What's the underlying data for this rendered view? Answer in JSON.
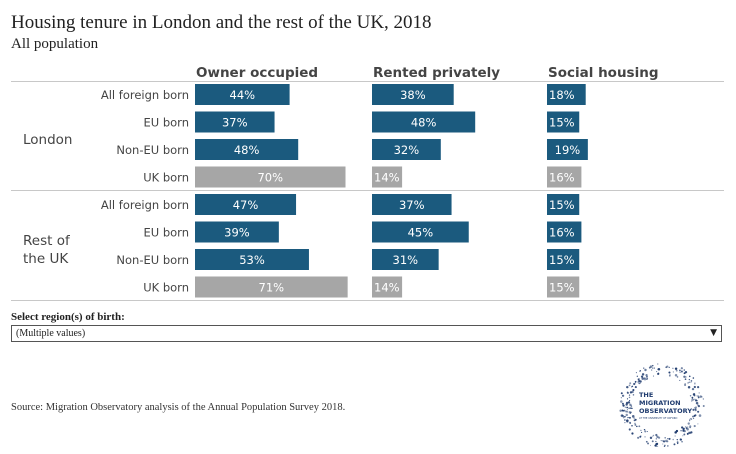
{
  "header": {
    "title": "Housing tenure in London and the rest of the UK, 2018",
    "subtitle": "All population"
  },
  "filter": {
    "label": "Select region(s) of birth:",
    "value": "(Multiple values)",
    "caret_icon": "dropdown-arrow-icon"
  },
  "footer": {
    "source": "Source: Migration Observatory analysis of the Annual Population Survey 2018."
  },
  "logo": {
    "lines": [
      "THE",
      "MIGRATION",
      "OBSERVATORY",
      "AT THE UNIVERSITY OF OXFORD"
    ],
    "color": "#1f3b6e"
  },
  "colors": {
    "migrant_bar": "#1b5a7e",
    "uk_bar": "#a6a6a6",
    "divider": "#c8c8c8"
  },
  "chart_data": {
    "type": "bar",
    "orientation": "horizontal",
    "unit": "%",
    "columns": [
      "Owner occupied",
      "Rented privately",
      "Social housing"
    ],
    "xlim": [
      0,
      100
    ],
    "groups": [
      {
        "label": "London",
        "rows": [
          {
            "category": "All foreign born",
            "values": [
              44,
              38,
              18
            ]
          },
          {
            "category": "EU born",
            "values": [
              37,
              48,
              15
            ]
          },
          {
            "category": "Non-EU born",
            "values": [
              48,
              32,
              19
            ]
          },
          {
            "category": "UK born",
            "values": [
              70,
              14,
              16
            ]
          }
        ]
      },
      {
        "label": "Rest of the UK",
        "rows": [
          {
            "category": "All foreign born",
            "values": [
              47,
              37,
              15
            ]
          },
          {
            "category": "EU born",
            "values": [
              39,
              45,
              16
            ]
          },
          {
            "category": "Non-EU born",
            "values": [
              53,
              31,
              15
            ]
          },
          {
            "category": "UK born",
            "values": [
              71,
              14,
              15
            ]
          }
        ]
      }
    ]
  }
}
